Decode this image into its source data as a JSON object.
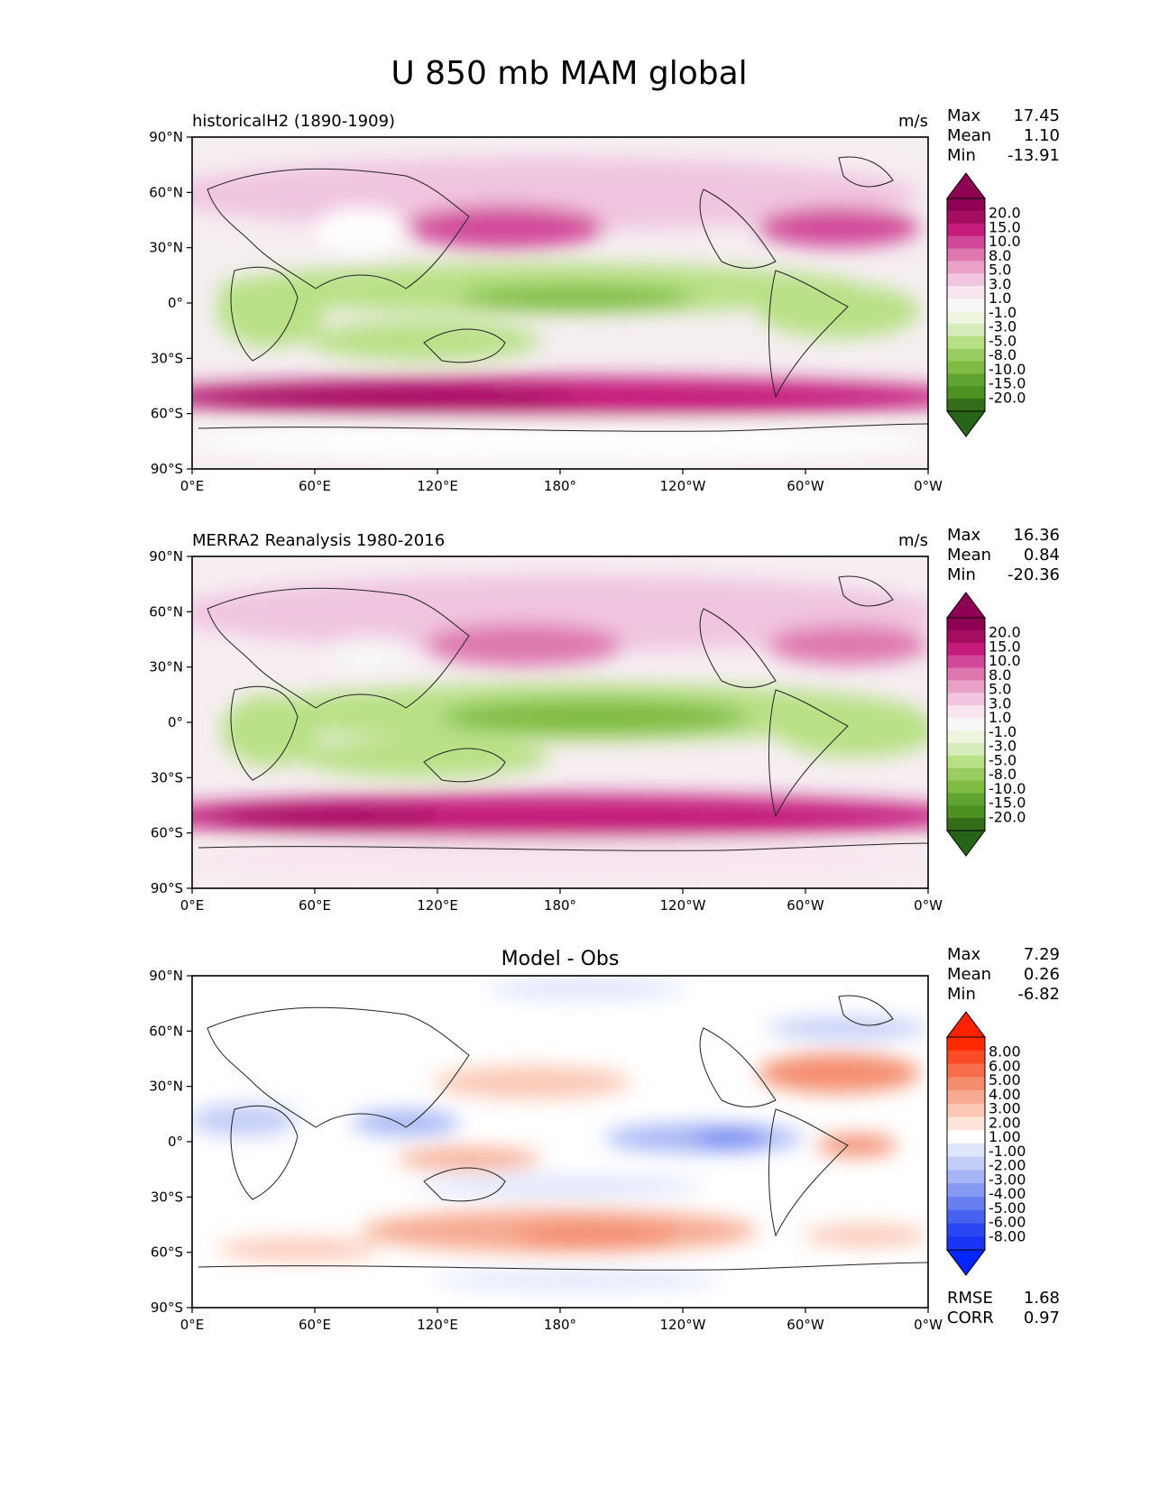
{
  "title": "U 850 mb MAM global",
  "x_ticks": [
    "0°E",
    "60°E",
    "120°E",
    "180°",
    "120°W",
    "60°W",
    "0°W"
  ],
  "y_ticks": [
    "90°N",
    "60°N",
    "30°N",
    "0°",
    "30°S",
    "60°S",
    "90°S"
  ],
  "panels": [
    {
      "left_title": "historicalH2 (1890-1909)",
      "center_title": "",
      "units": "m/s",
      "stats": [
        {
          "label": "Max",
          "value": "17.45"
        },
        {
          "label": "Mean",
          "value": "1.10"
        },
        {
          "label": "Min",
          "value": "-13.91"
        }
      ],
      "bottom_stats": [],
      "colorbar": {
        "labels": [
          "20.0",
          "15.0",
          "10.0",
          "8.0",
          "5.0",
          "3.0",
          "1.0",
          "-1.0",
          "-3.0",
          "-5.0",
          "-8.0",
          "-10.0",
          "-15.0",
          "-20.0"
        ],
        "colors": [
          "#8e0152",
          "#a50d5e",
          "#c51b7d",
          "#d1489a",
          "#de77ae",
          "#eaa1c8",
          "#f1c5df",
          "#f9e5f0",
          "#f7f7f7",
          "#eef5df",
          "#d6edbb",
          "#b8e186",
          "#9acd61",
          "#7fbc41",
          "#5fa331",
          "#4d9221",
          "#336d17"
        ],
        "max_arrow": "#8e0152",
        "min_arrow": "#276419"
      }
    },
    {
      "left_title": "MERRA2 Reanalysis 1980-2016",
      "center_title": "",
      "units": "m/s",
      "stats": [
        {
          "label": "Max",
          "value": "16.36"
        },
        {
          "label": "Mean",
          "value": "0.84"
        },
        {
          "label": "Min",
          "value": "-20.36"
        }
      ],
      "bottom_stats": [],
      "colorbar": {
        "labels": [
          "20.0",
          "15.0",
          "10.0",
          "8.0",
          "5.0",
          "3.0",
          "1.0",
          "-1.0",
          "-3.0",
          "-5.0",
          "-8.0",
          "-10.0",
          "-15.0",
          "-20.0"
        ],
        "colors": [
          "#8e0152",
          "#a50d5e",
          "#c51b7d",
          "#d1489a",
          "#de77ae",
          "#eaa1c8",
          "#f1c5df",
          "#f9e5f0",
          "#f7f7f7",
          "#eef5df",
          "#d6edbb",
          "#b8e186",
          "#9acd61",
          "#7fbc41",
          "#5fa331",
          "#4d9221",
          "#336d17"
        ],
        "max_arrow": "#8e0152",
        "min_arrow": "#276419"
      }
    },
    {
      "left_title": "",
      "center_title": "Model - Obs",
      "units": "",
      "stats": [
        {
          "label": "Max",
          "value": "7.29"
        },
        {
          "label": "Mean",
          "value": "0.26"
        },
        {
          "label": "Min",
          "value": "-6.82"
        }
      ],
      "bottom_stats": [
        {
          "label": "RMSE",
          "value": "1.68"
        },
        {
          "label": "CORR",
          "value": "0.97"
        }
      ],
      "colorbar": {
        "labels": [
          "8.00",
          "6.00",
          "5.00",
          "4.00",
          "3.00",
          "2.00",
          "1.00",
          "-1.00",
          "-2.00",
          "-3.00",
          "-4.00",
          "-5.00",
          "-6.00",
          "-8.00"
        ],
        "colors": [
          "#ff2a00",
          "#fb4b26",
          "#f76e4c",
          "#f48d6e",
          "#f7aa91",
          "#fbc7b4",
          "#fde4d9",
          "#ffffff",
          "#dfe5fb",
          "#c3cdf7",
          "#a5b5f5",
          "#8699f3",
          "#677ff1",
          "#4761f1",
          "#2a46f3",
          "#1a34f5"
        ],
        "max_arrow": "#ff2200",
        "min_arrow": "#0026ff"
      }
    }
  ],
  "chart_data": [
    {
      "type": "heatmap",
      "title": "historicalH2 (1890-1909)",
      "units": "m/s",
      "x_axis": "longitude",
      "x_range": [
        0,
        360
      ],
      "y_axis": "latitude",
      "y_range": [
        -90,
        90
      ],
      "x_tick_labels": [
        "0°E",
        "60°E",
        "120°E",
        "180°",
        "120°W",
        "60°W",
        "0°W"
      ],
      "y_tick_labels": [
        "90°N",
        "60°N",
        "30°N",
        "0°",
        "30°S",
        "60°S",
        "90°S"
      ],
      "max": 17.45,
      "mean": 1.1,
      "min": -13.91,
      "levels": [
        -20.0,
        -15.0,
        -10.0,
        -8.0,
        -5.0,
        -3.0,
        -1.0,
        1.0,
        3.0,
        5.0,
        8.0,
        10.0,
        15.0,
        20.0
      ],
      "colormap": "PiYG (pink positive, green negative)"
    },
    {
      "type": "heatmap",
      "title": "MERRA2 Reanalysis 1980-2016",
      "units": "m/s",
      "x_axis": "longitude",
      "x_range": [
        0,
        360
      ],
      "y_axis": "latitude",
      "y_range": [
        -90,
        90
      ],
      "x_tick_labels": [
        "0°E",
        "60°E",
        "120°E",
        "180°",
        "120°W",
        "60°W",
        "0°W"
      ],
      "y_tick_labels": [
        "90°N",
        "60°N",
        "30°N",
        "0°",
        "30°S",
        "60°S",
        "90°S"
      ],
      "max": 16.36,
      "mean": 0.84,
      "min": -20.36,
      "levels": [
        -20.0,
        -15.0,
        -10.0,
        -8.0,
        -5.0,
        -3.0,
        -1.0,
        1.0,
        3.0,
        5.0,
        8.0,
        10.0,
        15.0,
        20.0
      ],
      "colormap": "PiYG (pink positive, green negative)"
    },
    {
      "type": "heatmap",
      "title": "Model - Obs",
      "x_axis": "longitude",
      "x_range": [
        0,
        360
      ],
      "y_axis": "latitude",
      "y_range": [
        -90,
        90
      ],
      "x_tick_labels": [
        "0°E",
        "60°E",
        "120°E",
        "180°",
        "120°W",
        "60°W",
        "0°W"
      ],
      "y_tick_labels": [
        "90°N",
        "60°N",
        "30°N",
        "0°",
        "30°S",
        "60°S",
        "90°S"
      ],
      "max": 7.29,
      "mean": 0.26,
      "min": -6.82,
      "rmse": 1.68,
      "corr": 0.97,
      "levels": [
        -8.0,
        -6.0,
        -5.0,
        -4.0,
        -3.0,
        -2.0,
        -1.0,
        1.0,
        2.0,
        3.0,
        4.0,
        5.0,
        6.0,
        8.0
      ],
      "colormap": "diverging blue-white-red"
    }
  ]
}
